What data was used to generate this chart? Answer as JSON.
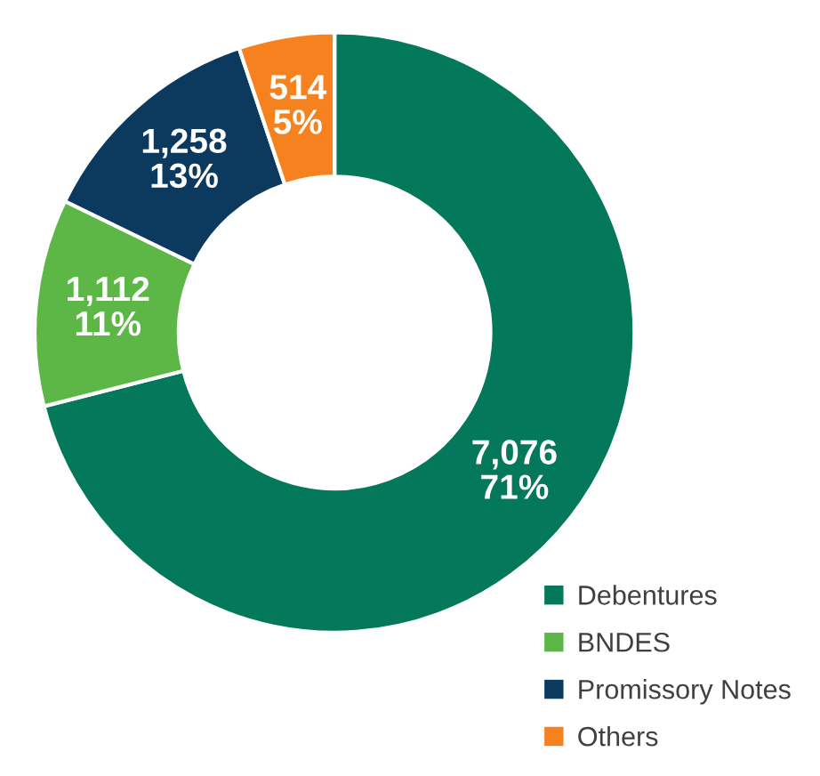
{
  "chart_data": {
    "type": "donut",
    "categories": [
      "Debentures",
      "BNDES",
      "Promissory Notes",
      "Others"
    ],
    "values": [
      7076,
      1112,
      1258,
      514
    ],
    "colors": [
      "#04785a",
      "#5cb747",
      "#0c3a5e",
      "#f5821f"
    ],
    "value_labels": [
      "7,076\n71%",
      "1,112\n11%",
      "1,258\n13%",
      "514\n5%"
    ],
    "legend": "bottom right"
  }
}
